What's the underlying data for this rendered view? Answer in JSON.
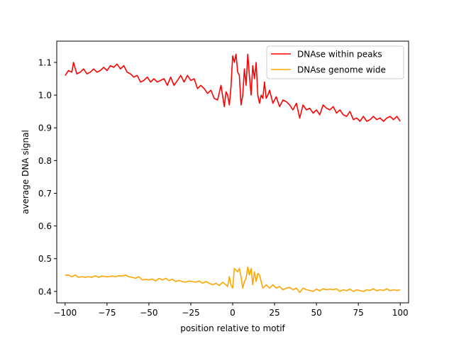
{
  "chart_data": {
    "type": "line",
    "xlabel": "position relative to motif",
    "ylabel": "average DNA signal",
    "xlim": [
      -105,
      105
    ],
    "ylim": [
      0.365,
      1.165
    ],
    "xticks": [
      -100,
      -75,
      -50,
      -25,
      0,
      25,
      50,
      75,
      100
    ],
    "xtick_labels": [
      "−100",
      "−75",
      "−50",
      "−25",
      "0",
      "25",
      "50",
      "75",
      "100"
    ],
    "yticks": [
      0.4,
      0.5,
      0.6,
      0.7,
      0.8,
      0.9,
      1.0,
      1.1
    ],
    "ytick_labels": [
      "0.4",
      "0.5",
      "0.6",
      "0.7",
      "0.8",
      "0.9",
      "1.0",
      "1.1"
    ],
    "grid": false,
    "legend_position": "top-right",
    "series": [
      {
        "name": "DNAse within peaks",
        "color": "#ff0000",
        "x": [
          -100,
          -98,
          -96,
          -95,
          -93,
          -91,
          -89,
          -87,
          -85,
          -83,
          -81,
          -79,
          -77,
          -75,
          -73,
          -71,
          -69,
          -67,
          -65,
          -63,
          -61,
          -59,
          -57,
          -55,
          -53,
          -51,
          -49,
          -47,
          -45,
          -43,
          -41,
          -39,
          -37,
          -35,
          -33,
          -31,
          -29,
          -27,
          -25,
          -23,
          -21,
          -19,
          -17,
          -15,
          -13,
          -11,
          -9,
          -7,
          -5,
          -4,
          -3,
          -2,
          -1,
          0,
          1,
          2,
          3,
          4,
          5,
          6,
          7,
          8,
          9,
          10,
          11,
          12,
          13,
          14,
          15,
          16,
          17,
          18,
          19,
          20,
          21,
          22,
          24,
          26,
          28,
          30,
          32,
          34,
          36,
          38,
          40,
          42,
          44,
          46,
          48,
          50,
          52,
          54,
          56,
          58,
          60,
          62,
          64,
          66,
          68,
          70,
          72,
          74,
          76,
          78,
          80,
          82,
          84,
          86,
          88,
          90,
          92,
          94,
          96,
          98,
          100
        ],
        "values": [
          1.06,
          1.075,
          1.07,
          1.1,
          1.065,
          1.07,
          1.08,
          1.065,
          1.07,
          1.08,
          1.07,
          1.075,
          1.085,
          1.075,
          1.09,
          1.085,
          1.095,
          1.08,
          1.09,
          1.07,
          1.065,
          1.055,
          1.06,
          1.04,
          1.045,
          1.055,
          1.04,
          1.05,
          1.04,
          1.045,
          1.05,
          1.03,
          1.055,
          1.03,
          1.045,
          1.06,
          1.04,
          1.06,
          1.045,
          1.05,
          1.02,
          1.03,
          1.02,
          1.005,
          1.015,
          0.99,
          0.985,
          1.03,
          0.965,
          1.01,
          1.0,
          0.97,
          1.025,
          1.12,
          1.1,
          1.125,
          1.07,
          1.06,
          0.97,
          1.0,
          1.08,
          1.03,
          1.125,
          1.06,
          1.0,
          1.09,
          1.05,
          1.1,
          1.0,
          0.975,
          1.0,
          0.99,
          1.04,
          0.99,
          1.0,
          1.015,
          0.975,
          0.995,
          0.965,
          0.985,
          0.98,
          0.97,
          0.955,
          0.975,
          0.93,
          0.97,
          0.955,
          0.96,
          0.945,
          0.955,
          0.94,
          0.97,
          0.96,
          0.955,
          0.965,
          0.945,
          0.955,
          0.94,
          0.935,
          0.95,
          0.925,
          0.93,
          0.92,
          0.935,
          0.92,
          0.925,
          0.935,
          0.925,
          0.93,
          0.92,
          0.93,
          0.935,
          0.925,
          0.935,
          0.92
        ]
      },
      {
        "name": "DNAse genome wide",
        "color": "#ffa500",
        "x": [
          -100,
          -98,
          -96,
          -94,
          -92,
          -90,
          -88,
          -86,
          -84,
          -82,
          -80,
          -78,
          -76,
          -74,
          -72,
          -70,
          -68,
          -66,
          -64,
          -62,
          -60,
          -58,
          -56,
          -54,
          -52,
          -50,
          -48,
          -46,
          -44,
          -42,
          -40,
          -38,
          -36,
          -34,
          -32,
          -30,
          -28,
          -26,
          -24,
          -22,
          -20,
          -18,
          -16,
          -14,
          -12,
          -10,
          -8,
          -6,
          -4,
          -3,
          -2,
          -1,
          0,
          1,
          2,
          3,
          4,
          5,
          6,
          7,
          8,
          9,
          10,
          11,
          12,
          13,
          14,
          15,
          16,
          17,
          18,
          20,
          22,
          24,
          26,
          28,
          30,
          32,
          34,
          36,
          38,
          40,
          42,
          44,
          46,
          48,
          50,
          52,
          54,
          56,
          58,
          60,
          62,
          64,
          66,
          68,
          70,
          72,
          74,
          76,
          78,
          80,
          82,
          84,
          86,
          88,
          90,
          92,
          94,
          96,
          98,
          100
        ],
        "values": [
          0.45,
          0.45,
          0.445,
          0.45,
          0.443,
          0.445,
          0.443,
          0.445,
          0.443,
          0.448,
          0.443,
          0.447,
          0.445,
          0.445,
          0.447,
          0.445,
          0.448,
          0.447,
          0.45,
          0.445,
          0.443,
          0.44,
          0.445,
          0.435,
          0.437,
          0.435,
          0.438,
          0.432,
          0.44,
          0.435,
          0.44,
          0.433,
          0.437,
          0.43,
          0.434,
          0.43,
          0.428,
          0.432,
          0.43,
          0.428,
          0.432,
          0.425,
          0.43,
          0.425,
          0.42,
          0.425,
          0.418,
          0.428,
          0.42,
          0.415,
          0.445,
          0.42,
          0.41,
          0.47,
          0.465,
          0.46,
          0.47,
          0.445,
          0.41,
          0.43,
          0.44,
          0.475,
          0.45,
          0.47,
          0.42,
          0.46,
          0.43,
          0.455,
          0.45,
          0.43,
          0.41,
          0.42,
          0.41,
          0.42,
          0.41,
          0.415,
          0.405,
          0.41,
          0.412,
          0.405,
          0.41,
          0.397,
          0.41,
          0.405,
          0.403,
          0.4,
          0.407,
          0.402,
          0.408,
          0.405,
          0.407,
          0.405,
          0.408,
          0.4,
          0.405,
          0.402,
          0.407,
          0.4,
          0.405,
          0.402,
          0.4,
          0.405,
          0.403,
          0.408,
          0.402,
          0.405,
          0.403,
          0.408,
          0.402,
          0.405,
          0.403,
          0.405
        ]
      }
    ]
  }
}
